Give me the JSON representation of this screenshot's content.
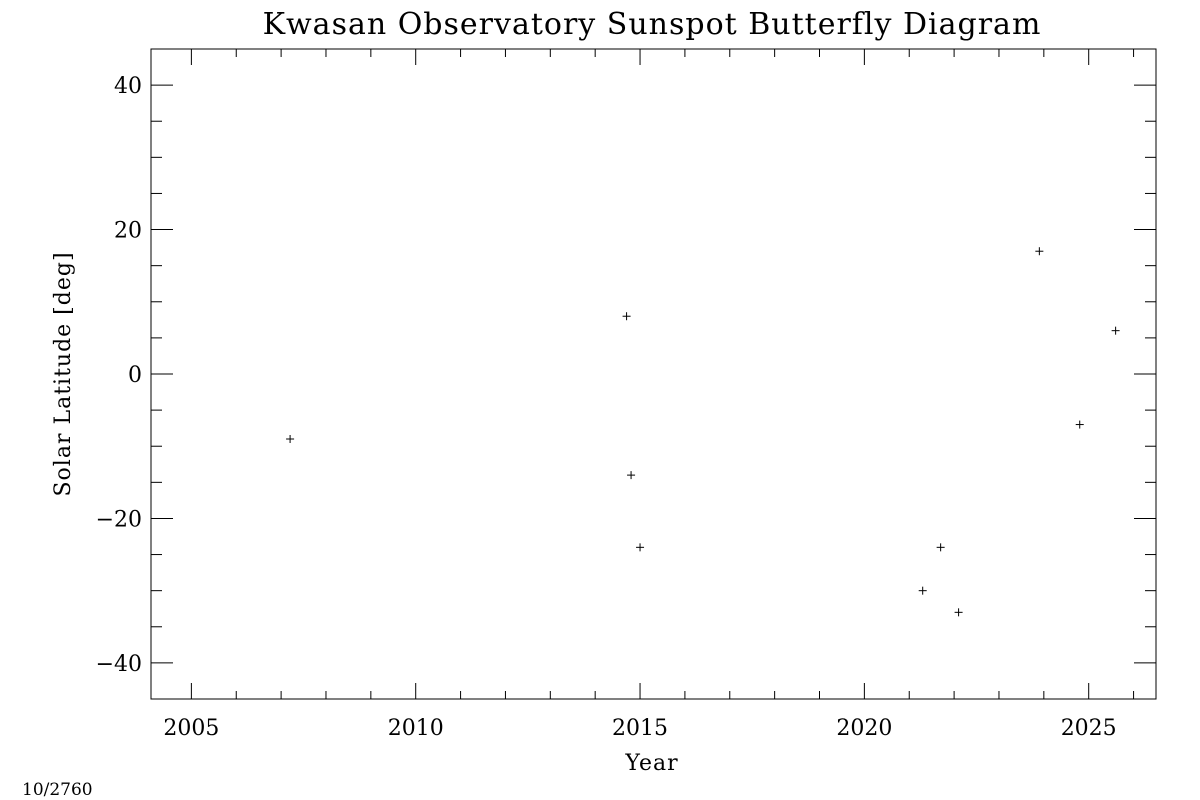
{
  "chart_data": {
    "type": "scatter",
    "title": "Kwasan Observatory Sunspot Butterfly Diagram",
    "xlabel": "Year",
    "ylabel": "Solar Latitude [deg]",
    "xlim": [
      2004.1,
      2026.5
    ],
    "ylim": [
      -45,
      45
    ],
    "x_major_ticks": [
      2005,
      2010,
      2015,
      2020,
      2025
    ],
    "x_minor_step": 1,
    "y_major_ticks": [
      -40,
      -20,
      0,
      20,
      40
    ],
    "y_minor_step": 5,
    "marker": "+",
    "grid": false,
    "points": [
      {
        "x": 2007.2,
        "y": -9
      },
      {
        "x": 2014.7,
        "y": 8
      },
      {
        "x": 2014.8,
        "y": -14
      },
      {
        "x": 2015.0,
        "y": -24
      },
      {
        "x": 2021.3,
        "y": -30
      },
      {
        "x": 2021.7,
        "y": -24
      },
      {
        "x": 2022.1,
        "y": -33
      },
      {
        "x": 2023.9,
        "y": 17
      },
      {
        "x": 2024.8,
        "y": -7
      },
      {
        "x": 2025.6,
        "y": 6
      }
    ]
  },
  "footer": {
    "counter": "10/2760"
  }
}
